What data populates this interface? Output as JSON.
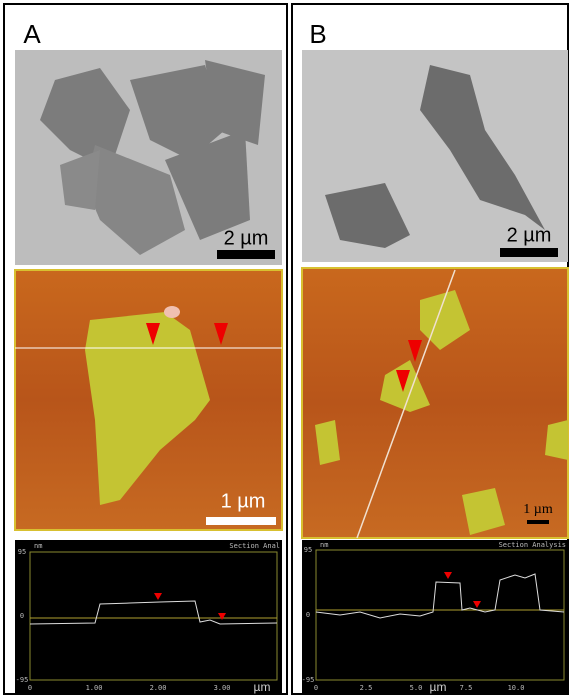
{
  "panels": [
    {
      "label": "A",
      "tem": {
        "scale_bar": "2 µm"
      },
      "afm": {
        "scale_bar": "1 µm"
      },
      "profile": {
        "unit": "nm",
        "title": "Section Anal",
        "yticks": [
          "95",
          "0",
          "-95"
        ],
        "xticks": [
          "0",
          "1.00",
          "2.00",
          "3.00"
        ],
        "xunit": "µm"
      }
    },
    {
      "label": "B",
      "tem": {
        "scale_bar": "2 µm"
      },
      "afm": {
        "scale_bar": "1 µm"
      },
      "profile": {
        "unit": "nm",
        "title": "Section Analysis",
        "yticks": [
          "95",
          "0",
          "-95"
        ],
        "xticks": [
          "0",
          "2.5",
          "5.0",
          "7.5",
          "10.0"
        ],
        "xunit": "µm"
      }
    }
  ]
}
